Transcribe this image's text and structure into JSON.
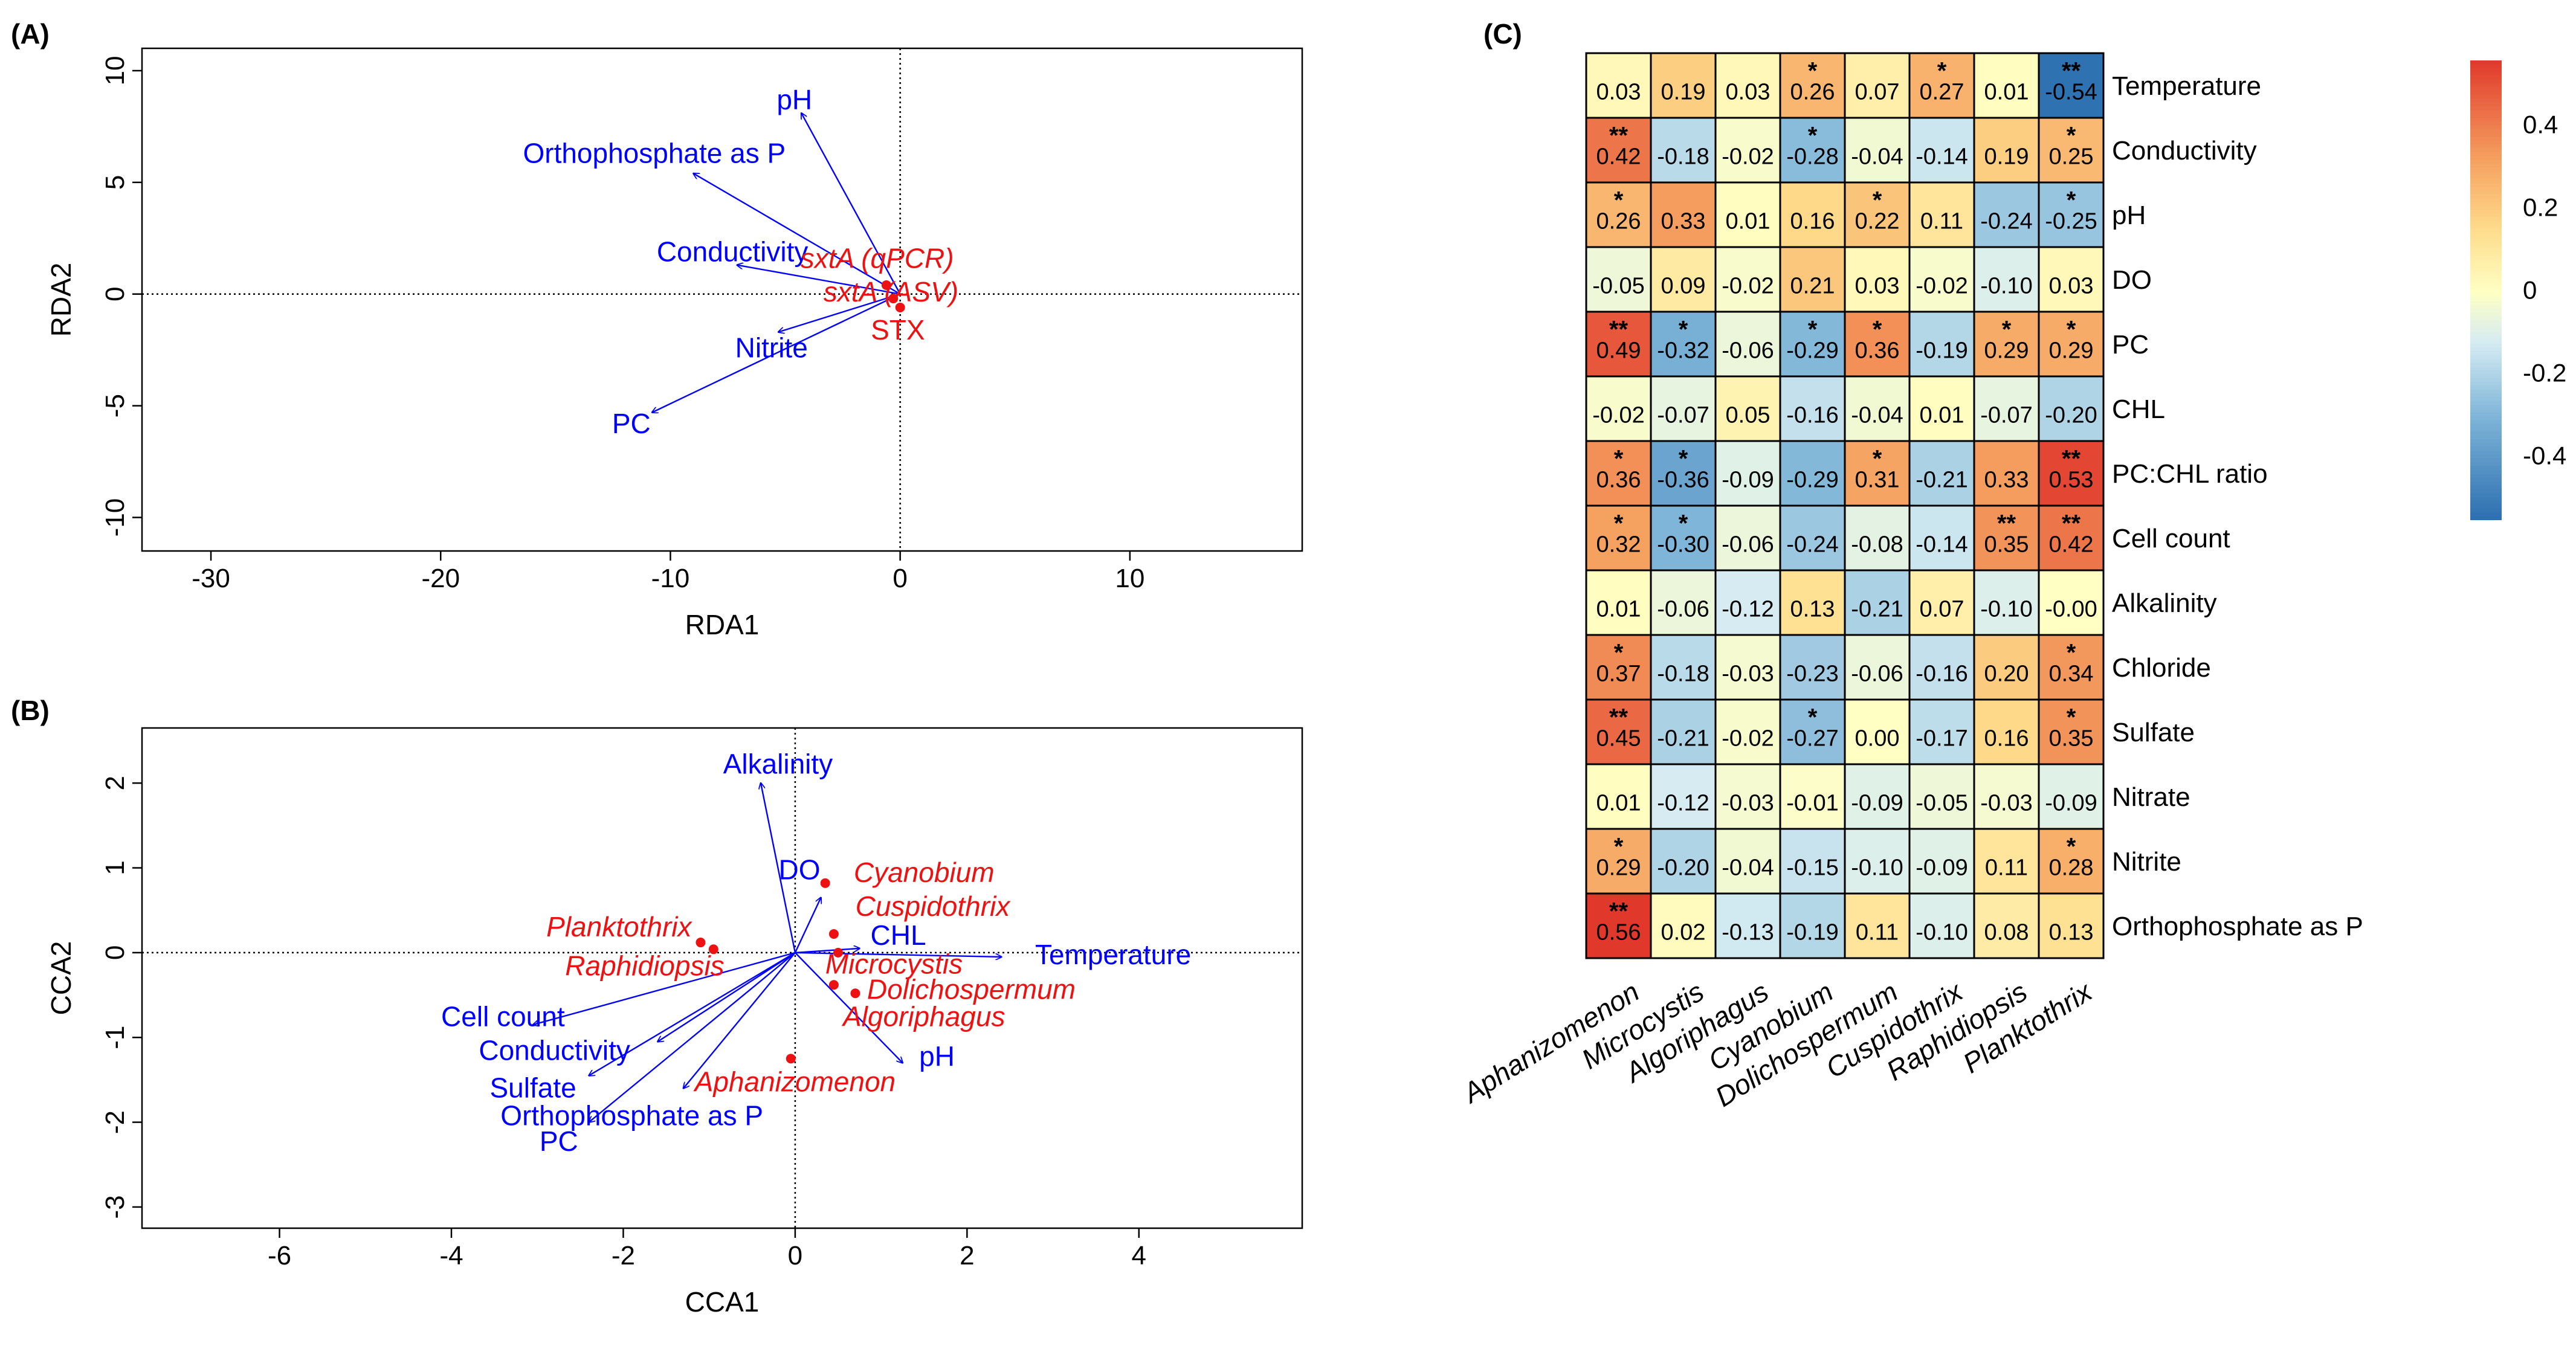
{
  "colors": {
    "env": "#0000ff",
    "species": "#ee1111",
    "axis": "#000000",
    "heat_neg_strong": "#3d79b4",
    "heat_neutral": "#ffffc4",
    "heat_pos_strong": "#e0392c"
  },
  "panels": {
    "a": {
      "label": "(A)"
    },
    "b": {
      "label": "(B)"
    },
    "c": {
      "label": "(C)"
    }
  },
  "chart_data": [
    {
      "panel": "A",
      "type": "scatter",
      "subtype": "rda_biplot",
      "xlabel": "RDA1",
      "ylabel": "RDA2",
      "xlim": [
        -33,
        17.5
      ],
      "ylim": [
        -11.5,
        11
      ],
      "xticks": [
        -30,
        -20,
        -10,
        0,
        10
      ],
      "yticks": [
        -10,
        -5,
        0,
        5,
        10
      ],
      "reference_lines": {
        "x": 0,
        "y": 0
      },
      "env_vectors": [
        {
          "name": "pH",
          "x": -4.3,
          "y": 8.1,
          "label_pos": [
            -4.6,
            8.6
          ]
        },
        {
          "name": "Orthophosphate as P",
          "x": -9.0,
          "y": 5.4,
          "label_pos": [
            -10.7,
            6.2
          ]
        },
        {
          "name": "Conductivity",
          "x": -7.1,
          "y": 1.3,
          "label_pos": [
            -7.3,
            1.8
          ]
        },
        {
          "name": "Nitrite",
          "x": -5.3,
          "y": -1.7,
          "label_pos": [
            -5.6,
            -2.5
          ]
        },
        {
          "name": "PC",
          "x": -10.8,
          "y": -5.3,
          "label_pos": [
            -11.7,
            -5.9
          ]
        }
      ],
      "response_points": [
        {
          "name": "sxtA (qPCR)",
          "x": -0.6,
          "y": 0.4,
          "italic": true,
          "label_pos": [
            -1.0,
            1.5
          ]
        },
        {
          "name": "sxtA (ASV)",
          "x": -0.3,
          "y": -0.2,
          "italic": true,
          "label_pos": [
            -0.4,
            -0.0
          ]
        },
        {
          "name": "STX",
          "x": 0.0,
          "y": -0.6,
          "italic": false,
          "label_pos": [
            -0.1,
            -1.7
          ]
        }
      ]
    },
    {
      "panel": "B",
      "type": "scatter",
      "subtype": "cca_biplot",
      "xlabel": "CCA1",
      "ylabel": "CCA2",
      "xlim": [
        -7.6,
        5.9
      ],
      "ylim": [
        -3.25,
        2.65
      ],
      "xticks": [
        -6,
        -4,
        -2,
        0,
        2,
        4
      ],
      "yticks": [
        -3,
        -2,
        -1,
        0,
        1,
        2
      ],
      "reference_lines": {
        "x": 0,
        "y": 0
      },
      "env_vectors": [
        {
          "name": "Alkalinity",
          "x": -0.4,
          "y": 2.0,
          "label_pos": [
            -0.2,
            2.2
          ]
        },
        {
          "name": "DO",
          "x": 0.3,
          "y": 0.65,
          "label_pos": [
            0.05,
            0.95
          ]
        },
        {
          "name": "CHL",
          "x": 0.75,
          "y": 0.05,
          "label_pos": [
            1.2,
            0.18
          ]
        },
        {
          "name": "Temperature",
          "x": 2.4,
          "y": -0.05,
          "label_pos": [
            3.7,
            -0.05
          ]
        },
        {
          "name": "pH",
          "x": 1.25,
          "y": -1.3,
          "label_pos": [
            1.65,
            -1.25
          ]
        },
        {
          "name": "Orthophosphate as P",
          "x": -1.3,
          "y": -1.6,
          "label_pos": [
            -1.9,
            -1.95
          ]
        },
        {
          "name": "Sulfate",
          "x": -2.4,
          "y": -1.45,
          "label_pos": [
            -3.05,
            -1.62
          ]
        },
        {
          "name": "PC",
          "x": -2.4,
          "y": -2.0,
          "label_pos": [
            -2.75,
            -2.25
          ]
        },
        {
          "name": "Conductivity",
          "x": -1.6,
          "y": -1.05,
          "label_pos": [
            -2.8,
            -1.18
          ]
        },
        {
          "name": "Cell count",
          "x": -3.05,
          "y": -0.85,
          "label_pos": [
            -3.4,
            -0.78
          ]
        }
      ],
      "species_points": [
        {
          "name": "Cyanobium",
          "x": 0.35,
          "y": 0.82,
          "label_pos": [
            1.5,
            0.92
          ]
        },
        {
          "name": "Cuspidothrix",
          "x": 0.45,
          "y": 0.22,
          "label_pos": [
            1.6,
            0.52
          ]
        },
        {
          "name": "Planktothrix",
          "x": -1.1,
          "y": 0.12,
          "label_pos": [
            -2.05,
            0.28
          ]
        },
        {
          "name": "Raphidiopsis",
          "x": -0.95,
          "y": 0.04,
          "label_pos": [
            -1.75,
            -0.18
          ]
        },
        {
          "name": "Microcystis",
          "x": 0.5,
          "y": 0.0,
          "label_pos": [
            1.15,
            -0.16
          ]
        },
        {
          "name": "Dolichospermum",
          "x": 0.45,
          "y": -0.38,
          "label_pos": [
            2.05,
            -0.46
          ]
        },
        {
          "name": "Algoriphagus",
          "x": 0.7,
          "y": -0.48,
          "label_pos": [
            1.5,
            -0.78
          ]
        },
        {
          "name": "Aphanizomenon",
          "x": -0.05,
          "y": -1.25,
          "label_pos": [
            0.0,
            -1.55
          ]
        }
      ]
    },
    {
      "panel": "C",
      "type": "heatmap",
      "columns": [
        "Aphanizomenon",
        "Microcystis",
        "Algoriphagus",
        "Cyanobium",
        "Dolichospermum",
        "Cuspidothrix",
        "Raphidiopsis",
        "Planktothrix"
      ],
      "rows": [
        "Temperature",
        "Conductivity",
        "pH",
        "DO",
        "PC",
        "CHL",
        "PC:CHL ratio",
        "Cell count",
        "Alkalinity",
        "Chloride",
        "Sulfate",
        "Nitrate",
        "Nitrite",
        "Orthophosphate as P"
      ],
      "values": [
        [
          "0.03",
          "0.19",
          "0.03",
          "0.26",
          "0.07",
          "0.27",
          "0.01",
          "-0.54"
        ],
        [
          "0.42",
          "-0.18",
          "-0.02",
          "-0.28",
          "-0.04",
          "-0.14",
          "0.19",
          "0.25"
        ],
        [
          "0.26",
          "0.33",
          "0.01",
          "0.16",
          "0.22",
          "0.11",
          "-0.24",
          "-0.25"
        ],
        [
          "-0.05",
          "0.09",
          "-0.02",
          "0.21",
          "0.03",
          "-0.02",
          "-0.10",
          "0.03"
        ],
        [
          "0.49",
          "-0.32",
          "-0.06",
          "-0.29",
          "0.36",
          "-0.19",
          "0.29",
          "0.29"
        ],
        [
          "-0.02",
          "-0.07",
          "0.05",
          "-0.16",
          "-0.04",
          "0.01",
          "-0.07",
          "-0.20"
        ],
        [
          "0.36",
          "-0.36",
          "-0.09",
          "-0.29",
          "0.31",
          "-0.21",
          "0.33",
          "0.53"
        ],
        [
          "0.32",
          "-0.30",
          "-0.06",
          "-0.24",
          "-0.08",
          "-0.14",
          "0.35",
          "0.42"
        ],
        [
          "0.01",
          "-0.06",
          "-0.12",
          "0.13",
          "-0.21",
          "0.07",
          "-0.10",
          "-0.00"
        ],
        [
          "0.37",
          "-0.18",
          "-0.03",
          "-0.23",
          "-0.06",
          "-0.16",
          "0.20",
          "0.34"
        ],
        [
          "0.45",
          "-0.21",
          "-0.02",
          "-0.27",
          "0.00",
          "-0.17",
          "0.16",
          "0.35"
        ],
        [
          "0.01",
          "-0.12",
          "-0.03",
          "-0.01",
          "-0.09",
          "-0.05",
          "-0.03",
          "-0.09"
        ],
        [
          "0.29",
          "-0.20",
          "-0.04",
          "-0.15",
          "-0.10",
          "-0.09",
          "0.11",
          "0.28"
        ],
        [
          "0.56",
          "0.02",
          "-0.13",
          "-0.19",
          "0.11",
          "-0.10",
          "0.08",
          "0.13"
        ]
      ],
      "significance": [
        [
          "",
          "",
          "",
          "*",
          "",
          "*",
          "",
          "**"
        ],
        [
          "**",
          "",
          "",
          "*",
          "",
          "",
          "",
          "*"
        ],
        [
          "*",
          "",
          "",
          "",
          "*",
          "",
          "",
          "*"
        ],
        [
          "",
          "",
          "",
          "",
          "",
          "",
          "",
          ""
        ],
        [
          "**",
          "*",
          "",
          "*",
          "*",
          "",
          "*",
          "*"
        ],
        [
          "",
          "",
          "",
          "",
          "",
          "",
          "",
          ""
        ],
        [
          "*",
          "*",
          "",
          "",
          "*",
          "",
          "",
          "**"
        ],
        [
          "*",
          "*",
          "",
          "",
          "",
          "",
          "**",
          "**"
        ],
        [
          "",
          "",
          "",
          "",
          "",
          "",
          "",
          ""
        ],
        [
          "*",
          "",
          "",
          "",
          "",
          "",
          "",
          "*"
        ],
        [
          "**",
          "",
          "",
          "*",
          "",
          "",
          "",
          "*"
        ],
        [
          "",
          "",
          "",
          "",
          "",
          "",
          "",
          ""
        ],
        [
          "*",
          "",
          "",
          "",
          "",
          "",
          "",
          "*"
        ],
        [
          "**",
          "",
          "",
          "",
          "",
          "",
          "",
          ""
        ]
      ],
      "color_scale": {
        "min": -0.55,
        "max": 0.56
      },
      "colorbar_ticks": [
        {
          "value": 0.4,
          "label": "0.4"
        },
        {
          "value": 0.2,
          "label": "0.2"
        },
        {
          "value": 0,
          "label": "0"
        },
        {
          "value": -0.2,
          "label": "-0.2"
        },
        {
          "value": -0.4,
          "label": "-0.4"
        }
      ]
    }
  ]
}
